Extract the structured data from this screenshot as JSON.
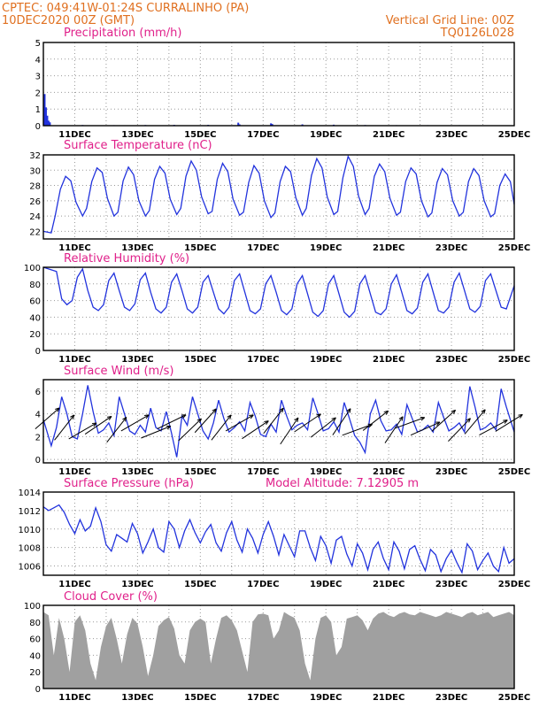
{
  "header": {
    "line1_left": "CPTEC:   049:41W-01:24S   CURRALINHO (PA)",
    "line2_left": "10DEC2020 00Z (GMT)",
    "line1_right": "Vertical Grid Line: 00Z",
    "line2_right": "TQ0126L028"
  },
  "colors": {
    "header": "#e07020",
    "title": "#e0208a",
    "series": "#2233dd",
    "cloud": "#a0a0a0",
    "grid": "#999999"
  },
  "chart_data": [
    {
      "type": "bar",
      "title": "Precipitation (mm/h)",
      "ylim": [
        0,
        5
      ],
      "yticks": [
        0,
        1,
        2,
        3,
        4,
        5
      ],
      "xtick_labels": [
        "11DEC",
        "13DEC",
        "15DEC",
        "17DEC",
        "19DEC",
        "21DEC",
        "23DEC",
        "25DEC"
      ],
      "x_hours_range": [
        0,
        360
      ],
      "bars": [
        [
          1,
          1.9
        ],
        [
          2,
          1.1
        ],
        [
          3,
          0.6
        ],
        [
          4,
          0.3
        ],
        [
          5,
          0.2
        ],
        [
          30,
          0.04
        ],
        [
          54,
          0.03
        ],
        [
          78,
          0.04
        ],
        [
          100,
          0.05
        ],
        [
          126,
          0.05
        ],
        [
          149,
          0.18
        ],
        [
          150,
          0.08
        ],
        [
          174,
          0.14
        ],
        [
          175,
          0.1
        ],
        [
          198,
          0.08
        ],
        [
          222,
          0.06
        ],
        [
          246,
          0.04
        ],
        [
          270,
          0.03
        ],
        [
          294,
          0.03
        ],
        [
          318,
          0.03
        ],
        [
          342,
          0.02
        ]
      ]
    },
    {
      "type": "line",
      "title": "Surface Temperature (nC)",
      "ylim": [
        21,
        32
      ],
      "yticks": [
        22,
        24,
        26,
        28,
        30,
        32
      ],
      "xtick_labels": [
        "11DEC",
        "13DEC",
        "15DEC",
        "17DEC",
        "19DEC",
        "21DEC",
        "23DEC",
        "25DEC"
      ],
      "x_hours_range": [
        0,
        360
      ],
      "x": [
        0,
        6,
        9,
        13,
        17,
        21,
        25,
        30,
        33,
        37,
        41,
        45,
        49,
        54,
        57,
        61,
        65,
        69,
        73,
        78,
        81,
        85,
        89,
        93,
        97,
        102,
        105,
        109,
        113,
        117,
        121,
        126,
        129,
        133,
        137,
        141,
        145,
        150,
        153,
        157,
        161,
        165,
        169,
        174,
        177,
        181,
        185,
        189,
        193,
        198,
        201,
        205,
        209,
        213,
        217,
        222,
        225,
        229,
        233,
        237,
        241,
        246,
        249,
        253,
        257,
        261,
        265,
        270,
        273,
        277,
        281,
        285,
        289,
        294,
        297,
        301,
        305,
        309,
        313,
        318,
        321,
        325,
        329,
        333,
        337,
        342,
        345,
        349,
        353,
        357,
        360
      ],
      "values": [
        22,
        21.8,
        24,
        27.5,
        29.2,
        28.6,
        25.8,
        24,
        25,
        28.5,
        30.3,
        29.7,
        26.3,
        24,
        24.5,
        28.6,
        30.4,
        29.4,
        26,
        24,
        24.7,
        28.8,
        30.5,
        29.6,
        26.2,
        24.2,
        25,
        29.2,
        31.2,
        30,
        26.5,
        24.3,
        24.6,
        28.8,
        30.9,
        29.8,
        26.2,
        24.1,
        24.5,
        28.4,
        30.6,
        29.6,
        26,
        23.8,
        24.4,
        28.5,
        30.5,
        29.8,
        26.4,
        24.1,
        25,
        29.3,
        31.5,
        30.3,
        26.5,
        24.2,
        24.6,
        29,
        31.8,
        30.5,
        26.6,
        24.2,
        25,
        29.2,
        30.8,
        29.8,
        26.3,
        24.1,
        24.5,
        28.5,
        30.3,
        29.5,
        26,
        23.9,
        24.4,
        28.4,
        30.2,
        29.4,
        26,
        24,
        24.5,
        28.5,
        30.2,
        29.3,
        26,
        23.9,
        24.3,
        28,
        29.5,
        28.5,
        25.5
      ]
    },
    {
      "type": "line",
      "title": "Relative Humidity (%)",
      "ylim": [
        0,
        100
      ],
      "yticks": [
        0,
        20,
        40,
        60,
        80,
        100
      ],
      "xtick_labels": [
        "11DEC",
        "13DEC",
        "15DEC",
        "17DEC",
        "19DEC",
        "21DEC",
        "23DEC",
        "25DEC"
      ],
      "x_hours_range": [
        0,
        360
      ],
      "x": [
        0,
        10,
        14,
        18,
        22,
        26,
        30,
        34,
        38,
        42,
        46,
        50,
        54,
        58,
        62,
        66,
        70,
        74,
        78,
        82,
        86,
        90,
        94,
        98,
        102,
        106,
        110,
        114,
        118,
        122,
        126,
        130,
        134,
        138,
        142,
        146,
        150,
        154,
        158,
        162,
        166,
        170,
        174,
        178,
        182,
        186,
        190,
        194,
        198,
        202,
        206,
        210,
        214,
        218,
        222,
        226,
        230,
        234,
        238,
        242,
        246,
        250,
        254,
        258,
        262,
        266,
        270,
        274,
        278,
        282,
        286,
        290,
        294,
        298,
        302,
        306,
        310,
        314,
        318,
        322,
        326,
        330,
        334,
        338,
        342,
        346,
        350,
        354,
        360
      ],
      "values": [
        100,
        95,
        62,
        55,
        60,
        88,
        98,
        72,
        52,
        48,
        55,
        84,
        93,
        72,
        52,
        48,
        56,
        85,
        93,
        70,
        50,
        45,
        52,
        82,
        92,
        72,
        50,
        45,
        52,
        82,
        90,
        70,
        50,
        44,
        52,
        84,
        92,
        70,
        48,
        44,
        50,
        80,
        90,
        70,
        48,
        43,
        50,
        80,
        90,
        68,
        46,
        41,
        48,
        80,
        90,
        68,
        46,
        40,
        47,
        80,
        90,
        68,
        46,
        43,
        50,
        80,
        91,
        70,
        48,
        44,
        51,
        82,
        92,
        70,
        48,
        45,
        52,
        82,
        93,
        72,
        50,
        46,
        53,
        84,
        92,
        72,
        52,
        50,
        78
      ]
    },
    {
      "type": "line",
      "title": "Surface Wind (m/s)",
      "ylim": [
        -0.3,
        7
      ],
      "yticks": [
        0,
        2,
        4,
        6
      ],
      "xtick_labels": [
        "11DEC",
        "13DEC",
        "15DEC",
        "17DEC",
        "19DEC",
        "21DEC",
        "23DEC",
        "25DEC"
      ],
      "x_hours_range": [
        0,
        360
      ],
      "x": [
        0,
        6,
        10,
        14,
        18,
        22,
        26,
        30,
        34,
        38,
        42,
        46,
        50,
        54,
        58,
        62,
        66,
        70,
        74,
        78,
        82,
        86,
        90,
        94,
        98,
        102,
        106,
        110,
        114,
        118,
        122,
        126,
        130,
        134,
        138,
        142,
        146,
        150,
        154,
        158,
        162,
        166,
        170,
        174,
        178,
        182,
        186,
        190,
        194,
        198,
        202,
        206,
        210,
        214,
        218,
        222,
        226,
        230,
        234,
        238,
        242,
        246,
        250,
        254,
        258,
        262,
        266,
        270,
        274,
        278,
        282,
        286,
        290,
        294,
        298,
        302,
        306,
        310,
        314,
        318,
        322,
        326,
        330,
        334,
        338,
        342,
        346,
        350,
        354,
        360
      ],
      "values": [
        3.5,
        1.2,
        2.8,
        5.5,
        4,
        2,
        1.8,
        4,
        6.5,
        4.2,
        2.3,
        2.6,
        3.2,
        2.1,
        5.5,
        4,
        2.5,
        2.2,
        3,
        2.4,
        4.5,
        2.8,
        2.5,
        4.2,
        2.3,
        0.2,
        3.8,
        3,
        5.5,
        4,
        2.5,
        1.8,
        3.2,
        5.2,
        3.6,
        2.4,
        2.8,
        3.3,
        2.5,
        5,
        3.8,
        2.2,
        2,
        3.1,
        2.4,
        5.2,
        3.8,
        2.6,
        3,
        3.2,
        2.6,
        5.4,
        4,
        2.5,
        2.7,
        3.3,
        2.4,
        5,
        3.6,
        2.1,
        1.5,
        0.6,
        4,
        5.2,
        3.4,
        2.5,
        2.6,
        3.1,
        2.2,
        4.8,
        3.6,
        2.4,
        2.6,
        3,
        2.4,
        5,
        3.7,
        2.5,
        2.8,
        3.2,
        2.4,
        6.4,
        4.6,
        2.6,
        2.8,
        3.2,
        2.6,
        6.2,
        4.6,
        2.4
      ],
      "arrows": [
        [
          3,
          3.6
        ],
        [
          16,
          2.8
        ],
        [
          30,
          2.5
        ],
        [
          42,
          3.0
        ],
        [
          56,
          2.6
        ],
        [
          70,
          3.2
        ],
        [
          86,
          2.4
        ],
        [
          98,
          3.3
        ],
        [
          112,
          2.6
        ],
        [
          124,
          3.4
        ],
        [
          136,
          2.8
        ],
        [
          150,
          3.2
        ],
        [
          162,
          2.6
        ],
        [
          176,
          3.4
        ],
        [
          188,
          2.5
        ],
        [
          202,
          3.2
        ],
        [
          214,
          2.8
        ],
        [
          228,
          3.3
        ],
        [
          240,
          2.6
        ],
        [
          254,
          3.4
        ],
        [
          268,
          2.6
        ],
        [
          280,
          3.2
        ],
        [
          292,
          2.7
        ],
        [
          306,
          3.4
        ],
        [
          318,
          2.6
        ],
        [
          330,
          3.3
        ],
        [
          344,
          2.8
        ],
        [
          356,
          3.2
        ]
      ]
    },
    {
      "type": "line",
      "title": "Surface Pressure (hPa)",
      "annotation": "Model Altitude: 7.12905 m",
      "ylim": [
        1005,
        1014
      ],
      "yticks": [
        1006,
        1008,
        1010,
        1012,
        1014
      ],
      "xtick_labels": [
        "11DEC",
        "13DEC",
        "15DEC",
        "17DEC",
        "19DEC",
        "21DEC",
        "23DEC",
        "25DEC"
      ],
      "x_hours_range": [
        0,
        360
      ],
      "x": [
        0,
        4,
        8,
        12,
        16,
        20,
        24,
        28,
        32,
        36,
        40,
        44,
        48,
        52,
        56,
        60,
        64,
        68,
        72,
        76,
        80,
        84,
        88,
        92,
        96,
        100,
        104,
        108,
        112,
        116,
        120,
        124,
        128,
        132,
        136,
        140,
        144,
        148,
        152,
        156,
        160,
        164,
        168,
        172,
        176,
        180,
        184,
        188,
        192,
        196,
        200,
        204,
        208,
        212,
        216,
        220,
        224,
        228,
        232,
        236,
        240,
        244,
        248,
        252,
        256,
        260,
        264,
        268,
        272,
        276,
        280,
        284,
        288,
        292,
        296,
        300,
        304,
        308,
        312,
        316,
        320,
        324,
        328,
        332,
        336,
        340,
        344,
        348,
        352,
        356,
        360
      ],
      "values": [
        1012.4,
        1012,
        1012.3,
        1012.6,
        1011.8,
        1010.5,
        1009.5,
        1011,
        1009.8,
        1010.3,
        1012.3,
        1010.8,
        1008.3,
        1007.6,
        1009.4,
        1009,
        1008.6,
        1010.6,
        1009.5,
        1007.4,
        1008.6,
        1010,
        1008,
        1007.5,
        1010.8,
        1010,
        1008,
        1009.8,
        1011,
        1009.6,
        1008.5,
        1009.7,
        1010.5,
        1008.5,
        1007.6,
        1009.6,
        1010.8,
        1008.8,
        1007.5,
        1010,
        1009,
        1007.4,
        1009.4,
        1010.8,
        1009.2,
        1007.2,
        1009.4,
        1008.2,
        1007,
        1009.8,
        1009.8,
        1008,
        1006.6,
        1009.2,
        1008.2,
        1006.3,
        1008.8,
        1009.2,
        1007.3,
        1006,
        1008.4,
        1007.4,
        1005.6,
        1007.8,
        1008.6,
        1006.8,
        1005.6,
        1008.6,
        1007.6,
        1005.7,
        1007.8,
        1008.2,
        1006.7,
        1005.5,
        1007.8,
        1007.2,
        1005.4,
        1006.8,
        1007.7,
        1006.4,
        1005.3,
        1008.4,
        1007.6,
        1005.6,
        1006.6,
        1007.4,
        1006,
        1005.4,
        1008,
        1006.3,
        1006.8
      ]
    },
    {
      "type": "area",
      "title": "Cloud Cover (%)",
      "ylim": [
        0,
        100
      ],
      "yticks": [
        0,
        20,
        40,
        60,
        80,
        100
      ],
      "xtick_labels": [
        "11DEC",
        "13DEC",
        "15DEC",
        "17DEC",
        "19DEC",
        "21DEC",
        "23DEC",
        "25DEC"
      ],
      "x_hours_range": [
        0,
        360
      ],
      "x": [
        0,
        4,
        8,
        12,
        16,
        20,
        24,
        28,
        32,
        36,
        40,
        44,
        48,
        52,
        56,
        60,
        64,
        68,
        72,
        76,
        80,
        84,
        88,
        92,
        96,
        100,
        104,
        108,
        112,
        116,
        120,
        124,
        128,
        132,
        136,
        140,
        144,
        148,
        152,
        156,
        160,
        164,
        168,
        172,
        176,
        180,
        184,
        188,
        192,
        196,
        200,
        204,
        208,
        212,
        216,
        220,
        224,
        228,
        232,
        236,
        240,
        244,
        248,
        252,
        256,
        260,
        264,
        268,
        272,
        276,
        280,
        284,
        288,
        292,
        296,
        300,
        304,
        308,
        312,
        316,
        320,
        324,
        328,
        332,
        336,
        340,
        344,
        348,
        352,
        356,
        360
      ],
      "values": [
        92,
        88,
        40,
        85,
        60,
        20,
        80,
        88,
        70,
        30,
        10,
        50,
        75,
        85,
        60,
        30,
        65,
        85,
        78,
        50,
        15,
        40,
        75,
        82,
        86,
        72,
        40,
        30,
        70,
        80,
        84,
        80,
        30,
        60,
        85,
        88,
        82,
        70,
        45,
        20,
        80,
        89,
        90,
        88,
        60,
        70,
        92,
        88,
        85,
        70,
        30,
        10,
        60,
        85,
        88,
        80,
        40,
        50,
        84,
        86,
        88,
        82,
        70,
        84,
        90,
        92,
        88,
        86,
        90,
        92,
        89,
        88,
        92,
        90,
        88,
        86,
        88,
        92,
        90,
        88,
        86,
        90,
        92,
        88,
        90,
        92,
        86,
        88,
        90,
        92,
        88
      ]
    }
  ]
}
